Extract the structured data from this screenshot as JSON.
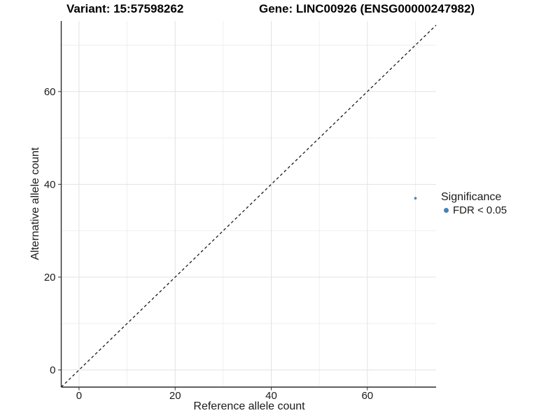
{
  "chart_data": {
    "type": "scatter",
    "titles": [
      "Variant: 15:57598262",
      "Gene: LINC00926 (ENSG00000247982)"
    ],
    "xlabel": "Reference allele count",
    "ylabel": "Alternative allele count",
    "xlim": [
      -3.7,
      74.3
    ],
    "ylim": [
      -3.7,
      75.2
    ],
    "x_major_ticks": [
      0,
      20,
      40,
      60
    ],
    "x_minor_ticks": [
      10,
      30,
      50,
      70
    ],
    "y_major_ticks": [
      0,
      20,
      40,
      60
    ],
    "y_minor_ticks": [
      10,
      30,
      50,
      70
    ],
    "grid": "major+minor on white panel",
    "identity_line": {
      "slope": 1,
      "intercept": 0,
      "style": "dashed",
      "color": "#1A1A1A"
    },
    "legend": {
      "position": "right",
      "title": "Significance",
      "items": [
        {
          "label": "FDR < 0.05",
          "color": "#4682B4",
          "marker": "circle"
        }
      ]
    },
    "series": [
      {
        "name": "FDR < 0.05",
        "color": "#4682B4",
        "points": [
          {
            "x": 70,
            "y": 37
          }
        ]
      }
    ]
  },
  "colors": {
    "background": "#FFFFFF",
    "grid_major": "#E2E2E2",
    "grid_minor": "#EFEFEF",
    "axis_line": "#2B2B2B",
    "tick_mark": "#333333",
    "text": "#1A1A1A",
    "point": "#4682B4"
  }
}
